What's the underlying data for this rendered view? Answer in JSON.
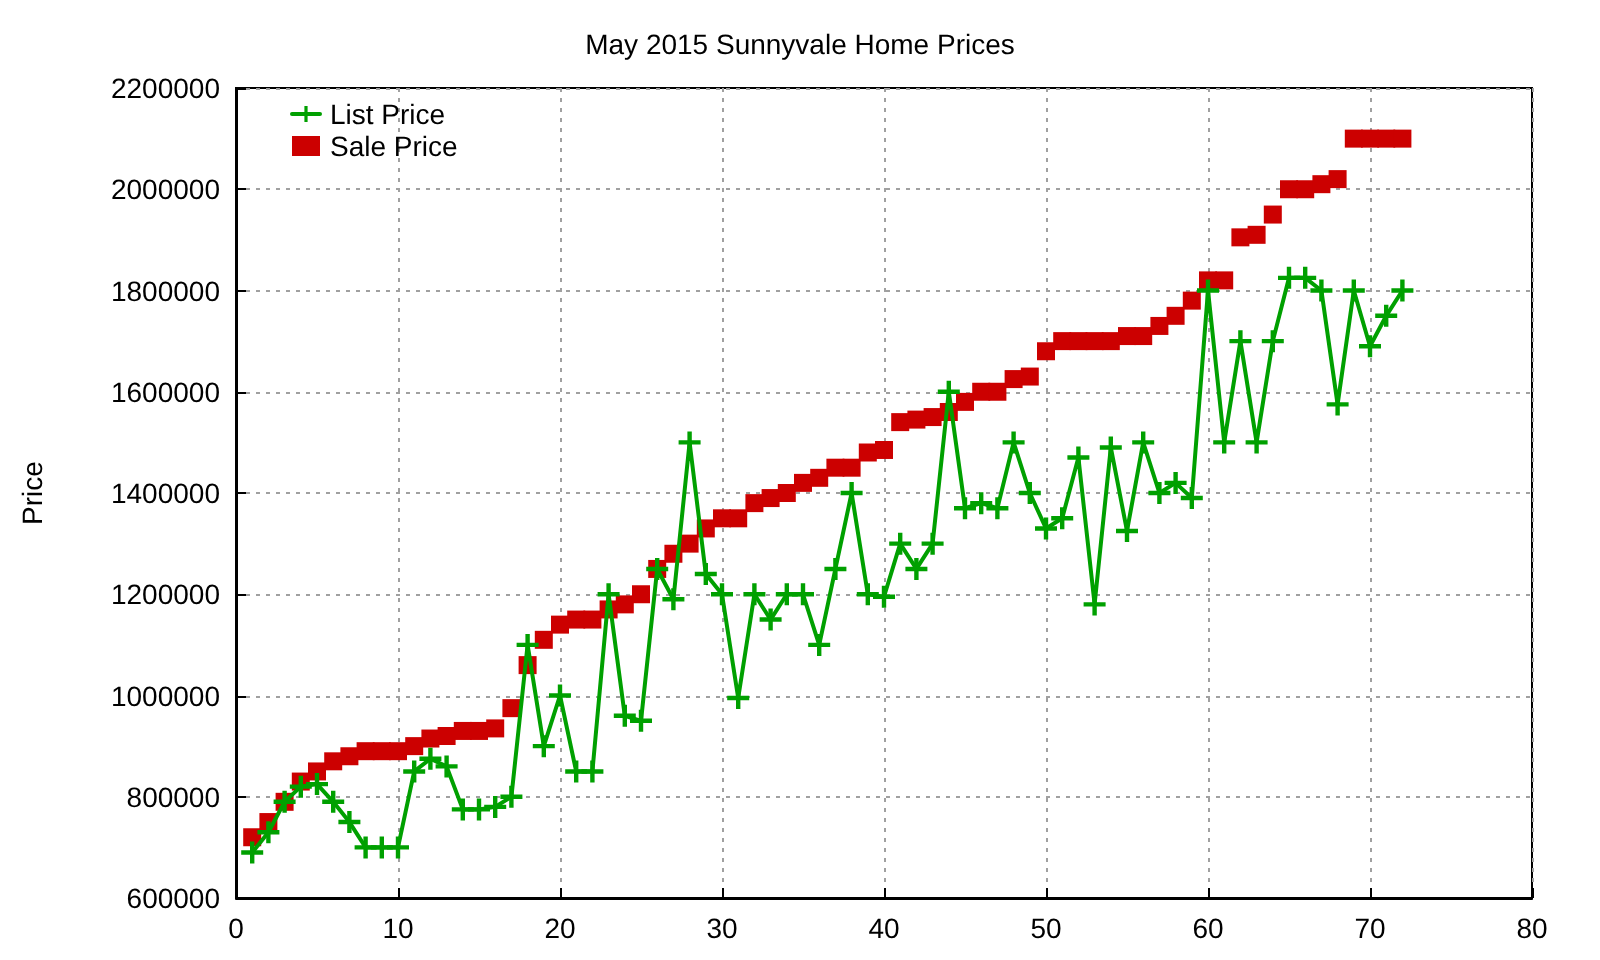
{
  "chart_data": {
    "type": "line",
    "title": "May 2015 Sunnyvale Home Prices",
    "ylabel": "Price",
    "x": [
      1,
      2,
      3,
      4,
      5,
      6,
      7,
      8,
      9,
      10,
      11,
      12,
      13,
      14,
      15,
      16,
      17,
      18,
      19,
      20,
      21,
      22,
      23,
      24,
      25,
      26,
      27,
      28,
      29,
      30,
      31,
      32,
      33,
      34,
      35,
      36,
      37,
      38,
      39,
      40,
      41,
      42,
      43,
      44,
      45,
      46,
      47,
      48,
      49,
      50,
      51,
      52,
      53,
      54,
      55,
      56,
      57,
      58,
      59,
      60,
      61,
      62,
      63,
      64,
      65,
      66,
      67,
      68,
      69,
      70,
      71,
      72
    ],
    "series": [
      {
        "name": "List Price",
        "marker": "cross",
        "color": "#00a000",
        "values": [
          690000,
          730000,
          790000,
          820000,
          825000,
          790000,
          750000,
          700000,
          700000,
          700000,
          850000,
          875000,
          860000,
          775000,
          775000,
          780000,
          800000,
          1100000,
          900000,
          1000000,
          850000,
          850000,
          1200000,
          960000,
          950000,
          1250000,
          1190000,
          1500000,
          1240000,
          1200000,
          995000,
          1200000,
          1150000,
          1200000,
          1200000,
          1100000,
          1250000,
          1400000,
          1200000,
          1195000,
          1300000,
          1250000,
          1300000,
          1600000,
          1370000,
          1380000,
          1370000,
          1500000,
          1400000,
          1330000,
          1350000,
          1470000,
          1180000,
          1490000,
          1325000,
          1500000,
          1400000,
          1420000,
          1390000,
          1800000,
          1500000,
          1700000,
          1500000,
          1700000,
          1825000,
          1825000,
          1800000,
          1575000,
          1800000,
          1690000,
          1750000,
          1800000
        ]
      },
      {
        "name": "Sale Price",
        "type": "scatter",
        "marker": "square",
        "color": "#cc0000",
        "values": [
          720000,
          750000,
          790000,
          830000,
          850000,
          870000,
          880000,
          890000,
          890000,
          890000,
          900000,
          915000,
          920000,
          930000,
          930000,
          935000,
          975000,
          1060000,
          1110000,
          1140000,
          1150000,
          1150000,
          1170000,
          1180000,
          1200000,
          1250000,
          1280000,
          1300000,
          1330000,
          1350000,
          1350000,
          1380000,
          1390000,
          1400000,
          1420000,
          1430000,
          1450000,
          1450000,
          1480000,
          1485000,
          1540000,
          1545000,
          1550000,
          1560000,
          1580000,
          1600000,
          1600000,
          1625000,
          1630000,
          1680000,
          1700000,
          1700000,
          1700000,
          1700000,
          1710000,
          1710000,
          1730000,
          1750000,
          1780000,
          1820000,
          1820000,
          1905000,
          1910000,
          1950000,
          2000000,
          2000000,
          2010000,
          2020000,
          2100000,
          2100000,
          2100000,
          2100000
        ]
      }
    ],
    "xlim": [
      0,
      80
    ],
    "xticks": [
      0,
      10,
      20,
      30,
      40,
      50,
      60,
      70,
      80
    ],
    "ylim": [
      600000,
      2200000
    ],
    "yticks": [
      600000,
      800000,
      1000000,
      1200000,
      1400000,
      1600000,
      1800000,
      2000000,
      2200000
    ],
    "grid": true,
    "legend": "top left"
  }
}
